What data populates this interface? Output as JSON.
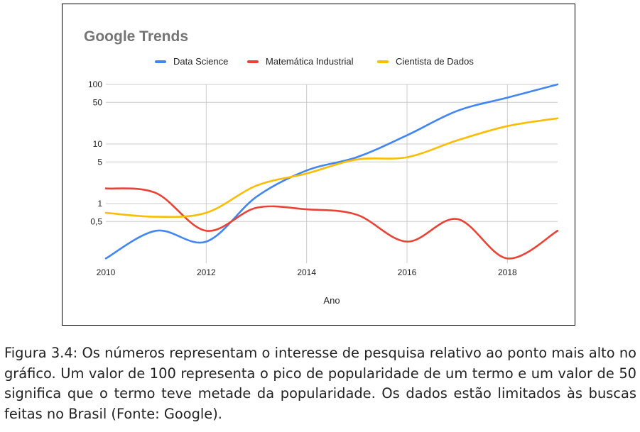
{
  "chart_data": {
    "type": "line",
    "title": "Google Trends",
    "xlabel": "Ano",
    "ylabel": "",
    "y_scale": "log",
    "ylim": [
      0.1,
      100
    ],
    "xlim": [
      2010,
      2019
    ],
    "x_ticks": [
      2010,
      2012,
      2014,
      2016,
      2018
    ],
    "x_tick_labels": [
      "2010",
      "2012",
      "2014",
      "2016",
      "2018"
    ],
    "y_ticks": [
      100,
      50,
      10,
      5,
      1,
      0.5
    ],
    "y_tick_labels": [
      "100",
      "50",
      "10",
      "5",
      "1",
      "0,5"
    ],
    "grid": true,
    "legend_position": "top",
    "x": [
      2010,
      2011,
      2012,
      2013,
      2014,
      2015,
      2016,
      2017,
      2018,
      2019
    ],
    "series": [
      {
        "name": "Data Science",
        "color": "#4285f4",
        "values": [
          0.12,
          0.35,
          0.23,
          1.3,
          3.6,
          6.0,
          14.0,
          36.0,
          60.0,
          100.0
        ]
      },
      {
        "name": "Matemática Industrial",
        "color": "#ea4335",
        "values": [
          1.8,
          1.5,
          0.35,
          0.85,
          0.8,
          0.65,
          0.23,
          0.55,
          0.12,
          0.35
        ]
      },
      {
        "name": "Cientista de Dados",
        "color": "#fbbc04",
        "values": [
          0.7,
          0.6,
          0.7,
          2.0,
          3.2,
          5.5,
          6.0,
          11.5,
          20.0,
          27.0
        ]
      }
    ]
  },
  "caption": "Figura 3.4: Os números representam o interesse de pesquisa relativo ao ponto mais alto no gráfico. Um valor de 100 representa o pico de popularidade de um termo e um valor de 50 significa que o termo teve metade da popularidade. Os dados estão limitados às buscas feitas no Brasil (Fonte: Google)."
}
